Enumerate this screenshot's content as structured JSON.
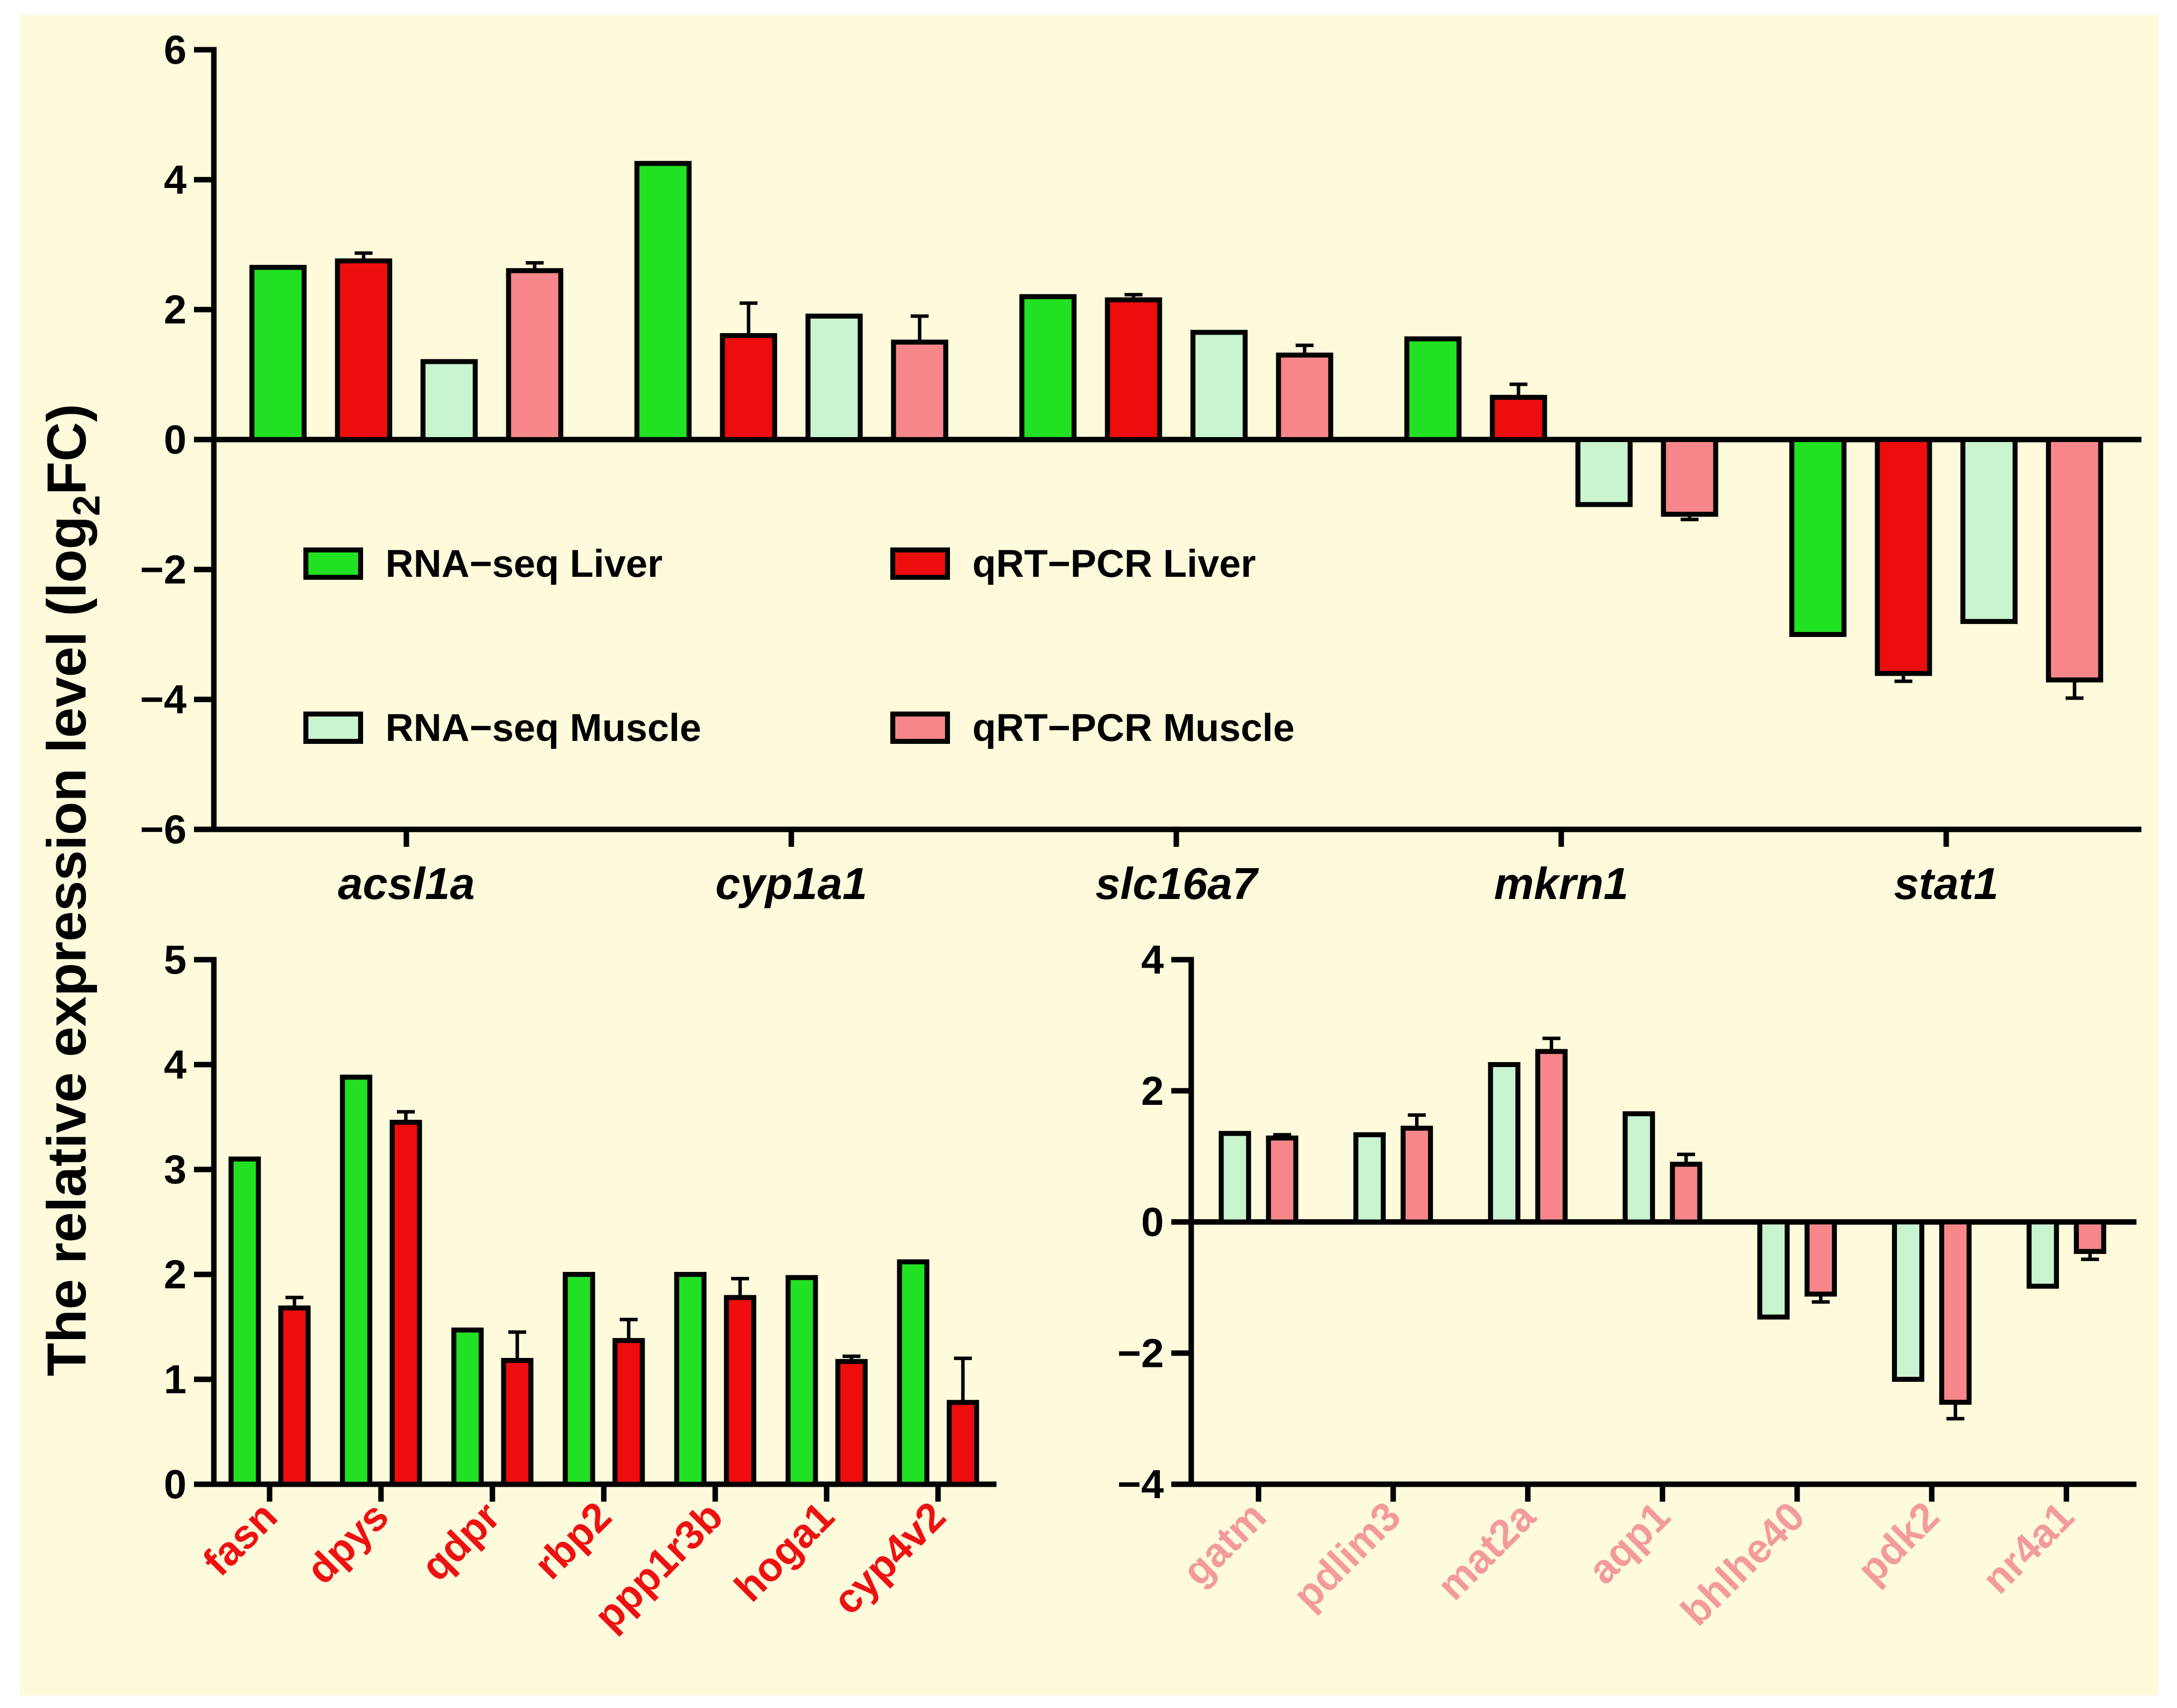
{
  "colors": {
    "background": "#fdfbdc",
    "rna_liver": "#22e022",
    "qpcr_liver": "#ee0d0d",
    "rna_muscle": "#c8f4d0",
    "qpcr_muscle": "#f7878a",
    "label_liver": "#ee1111",
    "label_muscle": "#f39a9a"
  },
  "ylabel": "The relative expression level (log",
  "ylabel_sub": "2",
  "ylabel_end": "FC)",
  "chart_data": [
    {
      "type": "bar",
      "categories": [
        "acsl1a",
        "cyp1a1",
        "slc16a7",
        "mkrn1",
        "stat1"
      ],
      "ylim": [
        -6,
        6
      ],
      "yticks": [
        "6",
        "4",
        "2",
        "0",
        "−2",
        "−4",
        "−6"
      ],
      "legend": "inside, upper-left",
      "series": [
        {
          "name": "RNA−seq Liver",
          "values": [
            2.65,
            4.25,
            2.2,
            1.55,
            -3.0
          ],
          "error": [
            0,
            0,
            0,
            0,
            0
          ]
        },
        {
          "name": "qRT−PCR Liver",
          "values": [
            2.75,
            1.6,
            2.15,
            0.65,
            -3.6
          ],
          "error": [
            0.12,
            0.5,
            0.08,
            0.2,
            0.12
          ]
        },
        {
          "name": "RNA−seq Muscle",
          "values": [
            1.2,
            1.9,
            1.65,
            -1.0,
            -2.8
          ],
          "error": [
            0,
            0,
            0,
            0,
            0
          ]
        },
        {
          "name": "qRT−PCR Muscle",
          "values": [
            2.6,
            1.5,
            1.3,
            -1.15,
            -3.7
          ],
          "error": [
            0.12,
            0.4,
            0.15,
            0.08,
            0.28
          ]
        }
      ]
    },
    {
      "type": "bar",
      "categories": [
        "fasn",
        "dpys",
        "qdpr",
        "rbp2",
        "ppp1r3b",
        "hoga1",
        "cyp4v2"
      ],
      "ylim": [
        0,
        5
      ],
      "yticks": [
        "5",
        "4",
        "3",
        "2",
        "1",
        "0"
      ],
      "series": [
        {
          "values": [
            3.1,
            3.88,
            1.47,
            2.0,
            2.0,
            1.97,
            2.12
          ],
          "error": [
            0,
            0,
            0,
            0,
            0,
            0,
            0
          ]
        },
        {
          "values": [
            1.68,
            3.45,
            1.18,
            1.37,
            1.78,
            1.17,
            0.78
          ],
          "error": [
            0.1,
            0.1,
            0.27,
            0.2,
            0.18,
            0.05,
            0.42
          ]
        }
      ]
    },
    {
      "type": "bar",
      "categories": [
        "gatm",
        "pdlim3",
        "mat2a",
        "aqp1",
        "bhlhe40",
        "pdk2",
        "nr4a1"
      ],
      "ylim": [
        -4,
        4
      ],
      "yticks": [
        "4",
        "2",
        "0",
        "−2",
        "−4"
      ],
      "series": [
        {
          "values": [
            1.35,
            1.33,
            2.4,
            1.65,
            -1.45,
            -2.4,
            -0.98
          ],
          "error": [
            0,
            0,
            0,
            0,
            0,
            0,
            0
          ]
        },
        {
          "values": [
            1.28,
            1.43,
            2.6,
            0.88,
            -1.1,
            -2.75,
            -0.45
          ],
          "error": [
            0.05,
            0.2,
            0.2,
            0.15,
            0.12,
            0.25,
            0.12
          ]
        }
      ]
    }
  ]
}
